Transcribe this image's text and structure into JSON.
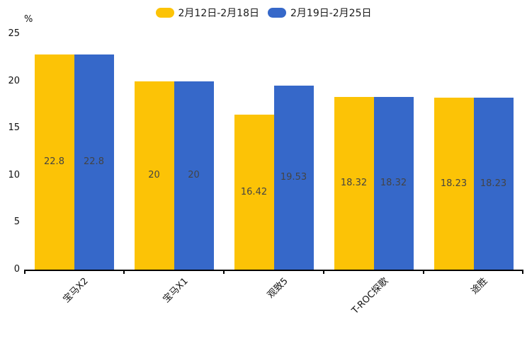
{
  "chart_data": {
    "type": "bar",
    "unit": "%",
    "categories": [
      "宝马X2",
      "宝马X1",
      "观致5",
      "T-ROC探歌",
      "途胜"
    ],
    "series": [
      {
        "name": "2月12日-2月18日",
        "color": "#FCC306",
        "values": [
          22.8,
          20,
          16.42,
          18.32,
          18.23
        ]
      },
      {
        "name": "2月19日-2月25日",
        "color": "#3668C9",
        "values": [
          22.8,
          20,
          19.53,
          18.32,
          18.23
        ]
      }
    ],
    "ylim": [
      0,
      25
    ],
    "yticks": [
      0,
      5,
      10,
      15,
      20,
      25
    ],
    "legend_position": "top",
    "grid": false,
    "value_label_color": "#444444",
    "axis_color": "#000000"
  }
}
